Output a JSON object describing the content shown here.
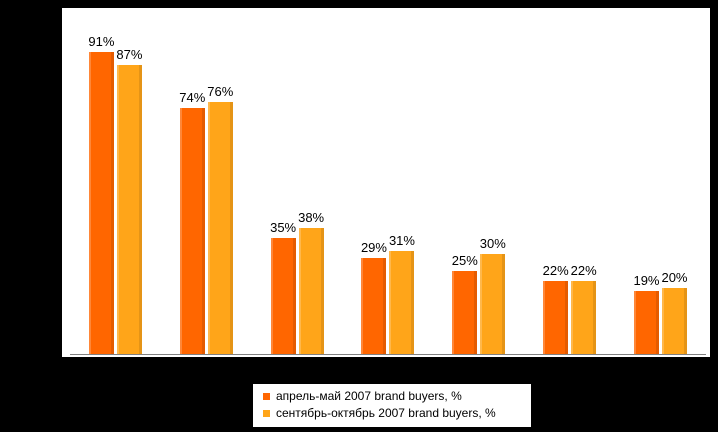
{
  "chart_data": {
    "type": "bar",
    "categories": [
      "",
      "",
      "",
      "",
      "",
      "",
      ""
    ],
    "series": [
      {
        "name": "апрель-май 2007 brand buyers, %",
        "color": "#FF6600",
        "values": [
          91,
          74,
          35,
          29,
          25,
          22,
          19
        ]
      },
      {
        "name": "сентябрь-октябрь 2007 brand buyers, %",
        "color": "#FFA519",
        "values": [
          87,
          76,
          38,
          31,
          30,
          22,
          20
        ]
      }
    ],
    "ylim": [
      0,
      100
    ],
    "value_label_suffix": "%",
    "value_labels": true,
    "grid": false,
    "legend_position": "bottom",
    "background": "#000000",
    "plot_background": "#FFFFFF",
    "axis_line_color": "#808080",
    "title": "",
    "xlabel": "",
    "ylabel": ""
  }
}
